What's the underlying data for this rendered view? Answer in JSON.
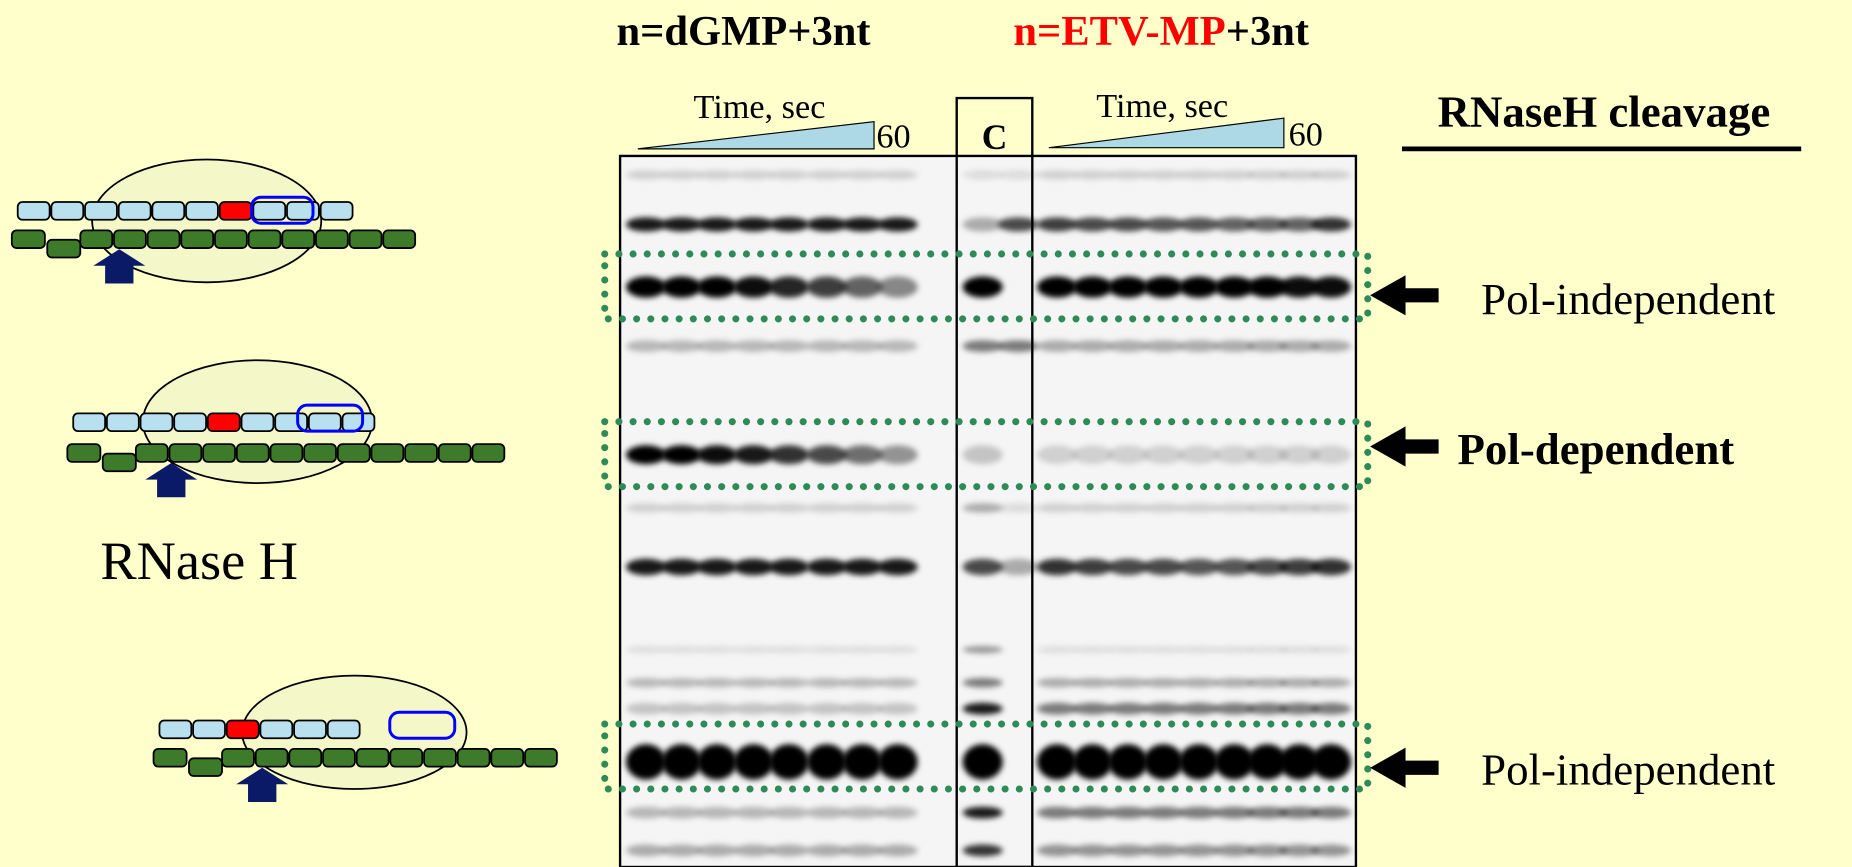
{
  "headers": {
    "left": "n=dGMP+3nt",
    "right_red": "n=ETV-MP",
    "right_black": "+3nt"
  },
  "gel": {
    "left_axis": {
      "label": "Time, sec",
      "end": "60"
    },
    "control": "C",
    "right_axis": {
      "label": "Time, sec",
      "end": "60"
    }
  },
  "legend_title": "RNaseH cleavage",
  "bands": [
    {
      "label": "Pol-independent"
    },
    {
      "label": "Pol-dependent"
    },
    {
      "label": "Pol-independent"
    }
  ],
  "diagram_label": "RNase H"
}
